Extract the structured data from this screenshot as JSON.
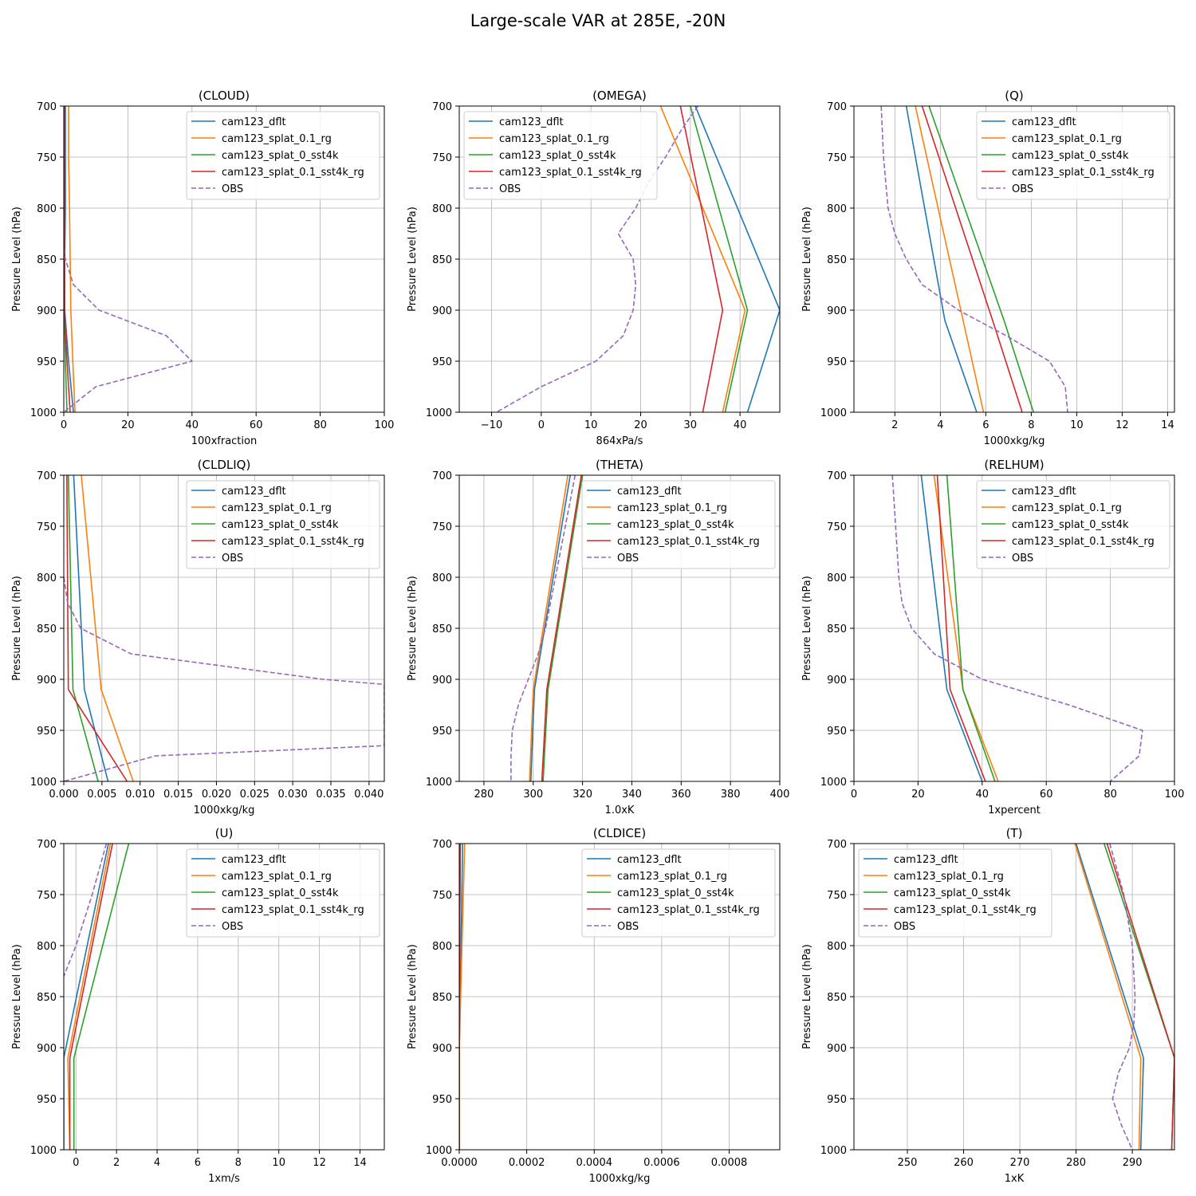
{
  "figure_title": "Large-scale VAR at 285E, -20N",
  "series_colors": {
    "cam123_dflt": "#1f77b4",
    "cam123_splat_0.1_rg": "#ff7f0e",
    "cam123_splat_0_sst4k": "#2ca02c",
    "cam123_splat_0.1_sst4k_rg": "#d62728",
    "OBS": "#9467bd"
  },
  "chart_data": [
    {
      "type": "line",
      "title": "(CLOUD)",
      "xlabel": "100xfraction",
      "ylabel": "Pressure Level (hPa)",
      "xlim": [
        0,
        100
      ],
      "ylim": [
        1000,
        700
      ],
      "xticks": [
        0,
        20,
        40,
        60,
        80,
        100
      ],
      "xtick_labels": [
        "0",
        "20",
        "40",
        "60",
        "80",
        "100"
      ],
      "yticks": [
        700,
        750,
        800,
        850,
        900,
        950,
        1000
      ],
      "grid": true,
      "legend": "upper-right",
      "series": [
        {
          "name": "cam123_dflt",
          "pressure": [
            700,
            750,
            800,
            850,
            900,
            950,
            1000
          ],
          "values": [
            0.5,
            0.5,
            0.5,
            0.3,
            0.3,
            1.5,
            3.0
          ]
        },
        {
          "name": "cam123_splat_0.1_rg",
          "pressure": [
            700,
            750,
            800,
            850,
            900,
            950,
            1000
          ],
          "values": [
            1.5,
            1.5,
            1.8,
            2.0,
            2.2,
            2.8,
            3.5
          ]
        },
        {
          "name": "cam123_splat_0_sst4k",
          "pressure": [
            700,
            750,
            800,
            850,
            900,
            950,
            1000
          ],
          "values": [
            0.3,
            0.3,
            0.3,
            0.2,
            0.2,
            0.5,
            1.0
          ]
        },
        {
          "name": "cam123_splat_0.1_sst4k_rg",
          "pressure": [
            700,
            750,
            800,
            850,
            900,
            950,
            1000
          ],
          "values": [
            0.3,
            0.3,
            0.3,
            0.2,
            0.2,
            1.0,
            2.0
          ]
        },
        {
          "name": "OBS",
          "dashed": true,
          "pressure": [
            840,
            850,
            875,
            900,
            925,
            950,
            975,
            1000
          ],
          "values": [
            0,
            0.5,
            3,
            11,
            32,
            40,
            10,
            0
          ]
        }
      ]
    },
    {
      "type": "line",
      "title": "(OMEGA)",
      "xlabel": "864xPa/s",
      "ylabel": "Pressure Level (hPa)",
      "xlim": [
        -16.5,
        48
      ],
      "ylim": [
        1000,
        700
      ],
      "xticks": [
        -10,
        0,
        10,
        20,
        30,
        40
      ],
      "xtick_labels": [
        "−10",
        "0",
        "10",
        "20",
        "30",
        "40"
      ],
      "yticks": [
        700,
        750,
        800,
        850,
        900,
        950,
        1000
      ],
      "grid": true,
      "legend": "upper-left",
      "series": [
        {
          "name": "cam123_dflt",
          "pressure": [
            700,
            900,
            1000
          ],
          "values": [
            31,
            48,
            41.5
          ]
        },
        {
          "name": "cam123_splat_0.1_rg",
          "pressure": [
            700,
            900,
            1000
          ],
          "values": [
            24,
            41,
            36.5
          ]
        },
        {
          "name": "cam123_splat_0_sst4k",
          "pressure": [
            700,
            900,
            1000
          ],
          "values": [
            30,
            41.5,
            37
          ]
        },
        {
          "name": "cam123_splat_0.1_sst4k_rg",
          "pressure": [
            700,
            900,
            1000
          ],
          "values": [
            28,
            36.5,
            32.5
          ]
        },
        {
          "name": "OBS",
          "dashed": true,
          "pressure": [
            700,
            725,
            750,
            775,
            800,
            825,
            850,
            875,
            900,
            925,
            950,
            975,
            1000
          ],
          "values": [
            31.5,
            28,
            25,
            21.5,
            19,
            15.5,
            18.5,
            19,
            18.5,
            16.5,
            11,
            0,
            -9
          ]
        }
      ]
    },
    {
      "type": "line",
      "title": "(Q)",
      "xlabel": "1000xkg/kg",
      "ylabel": "Pressure Level (hPa)",
      "xlim": [
        0.2,
        14.3
      ],
      "ylim": [
        1000,
        700
      ],
      "xticks": [
        2,
        4,
        6,
        8,
        10,
        12,
        14
      ],
      "xtick_labels": [
        "2",
        "4",
        "6",
        "8",
        "10",
        "12",
        "14"
      ],
      "yticks": [
        700,
        750,
        800,
        850,
        900,
        950,
        1000
      ],
      "grid": true,
      "legend": "upper-right",
      "series": [
        {
          "name": "cam123_dflt",
          "pressure": [
            700,
            910,
            1000
          ],
          "values": [
            2.5,
            4.2,
            5.6
          ]
        },
        {
          "name": "cam123_splat_0.1_rg",
          "pressure": [
            700,
            910,
            1000
          ],
          "values": [
            2.9,
            5.0,
            5.9
          ]
        },
        {
          "name": "cam123_splat_0_sst4k",
          "pressure": [
            700,
            910,
            1000
          ],
          "values": [
            3.5,
            6.8,
            8.1
          ]
        },
        {
          "name": "cam123_splat_0.1_sst4k_rg",
          "pressure": [
            700,
            910,
            1000
          ],
          "values": [
            3.2,
            6.3,
            7.6
          ]
        },
        {
          "name": "OBS",
          "dashed": true,
          "pressure": [
            700,
            750,
            800,
            825,
            850,
            875,
            900,
            925,
            950,
            975,
            1000
          ],
          "values": [
            1.4,
            1.5,
            1.7,
            2.0,
            2.5,
            3.2,
            4.8,
            6.9,
            8.8,
            9.5,
            9.6
          ]
        }
      ]
    },
    {
      "type": "line",
      "title": "(CLDLIQ)",
      "xlabel": "1000xkg/kg",
      "ylabel": "Pressure Level (hPa)",
      "xlim": [
        0,
        0.042
      ],
      "ylim": [
        1000,
        700
      ],
      "xticks": [
        0,
        0.005,
        0.01,
        0.015,
        0.02,
        0.025,
        0.03,
        0.035,
        0.04
      ],
      "xtick_labels": [
        "0.000",
        "0.005",
        "0.010",
        "0.015",
        "0.020",
        "0.025",
        "0.030",
        "0.035",
        "0.040"
      ],
      "yticks": [
        700,
        750,
        800,
        850,
        900,
        950,
        1000
      ],
      "grid": true,
      "legend": "upper-right",
      "series": [
        {
          "name": "cam123_dflt",
          "pressure": [
            700,
            910,
            1000
          ],
          "values": [
            0.0013,
            0.0027,
            0.0058
          ]
        },
        {
          "name": "cam123_splat_0.1_rg",
          "pressure": [
            700,
            910,
            1000
          ],
          "values": [
            0.0023,
            0.0049,
            0.0091
          ]
        },
        {
          "name": "cam123_splat_0_sst4k",
          "pressure": [
            700,
            910,
            1000
          ],
          "values": [
            0.0006,
            0.0012,
            0.0045
          ]
        },
        {
          "name": "cam123_splat_0.1_sst4k_rg",
          "pressure": [
            700,
            910,
            1000
          ],
          "values": [
            0.0004,
            0.0006,
            0.0083
          ]
        },
        {
          "name": "OBS",
          "dashed": true,
          "pressure": [
            800,
            825,
            850,
            875,
            900,
            905,
            960,
            965,
            975,
            1000
          ],
          "values": [
            0,
            0.0005,
            0.0022,
            0.0088,
            0.034,
            0.042,
            0.042,
            0.042,
            0.012,
            0
          ]
        }
      ]
    },
    {
      "type": "line",
      "title": "(THETA)",
      "xlabel": "1.0xK",
      "ylabel": "Pressure Level (hPa)",
      "xlim": [
        270,
        400
      ],
      "ylim": [
        1000,
        700
      ],
      "xticks": [
        280,
        300,
        320,
        340,
        360,
        380,
        400
      ],
      "xtick_labels": [
        "280",
        "300",
        "320",
        "340",
        "360",
        "380",
        "400"
      ],
      "yticks": [
        700,
        750,
        800,
        850,
        900,
        950,
        1000
      ],
      "grid": true,
      "legend": "upper-right",
      "series": [
        {
          "name": "cam123_dflt",
          "pressure": [
            700,
            910,
            1000
          ],
          "values": [
            315,
            300.5,
            299
          ]
        },
        {
          "name": "cam123_splat_0.1_rg",
          "pressure": [
            700,
            910,
            1000
          ],
          "values": [
            314,
            300,
            298.5
          ]
        },
        {
          "name": "cam123_splat_0_sst4k",
          "pressure": [
            700,
            910,
            1000
          ],
          "values": [
            320,
            306,
            304
          ]
        },
        {
          "name": "cam123_splat_0.1_sst4k_rg",
          "pressure": [
            700,
            910,
            1000
          ],
          "values": [
            319.5,
            305.5,
            303.5
          ]
        },
        {
          "name": "OBS",
          "dashed": true,
          "pressure": [
            700,
            750,
            800,
            850,
            875,
            900,
            925,
            950,
            975,
            1000
          ],
          "values": [
            317,
            313,
            309,
            305,
            302,
            298,
            294,
            291.5,
            291,
            291
          ]
        }
      ]
    },
    {
      "type": "line",
      "title": "(RELHUM)",
      "xlabel": "1xpercent",
      "ylabel": "Pressure Level (hPa)",
      "xlim": [
        0,
        100
      ],
      "ylim": [
        1000,
        700
      ],
      "xticks": [
        0,
        20,
        40,
        60,
        80,
        100
      ],
      "xtick_labels": [
        "0",
        "20",
        "40",
        "60",
        "80",
        "100"
      ],
      "yticks": [
        700,
        750,
        800,
        850,
        900,
        950,
        1000
      ],
      "grid": true,
      "legend": "upper-right",
      "series": [
        {
          "name": "cam123_dflt",
          "pressure": [
            700,
            910,
            1000
          ],
          "values": [
            21,
            29,
            40
          ]
        },
        {
          "name": "cam123_splat_0.1_rg",
          "pressure": [
            700,
            910,
            1000
          ],
          "values": [
            25,
            34,
            45
          ]
        },
        {
          "name": "cam123_splat_0_sst4k",
          "pressure": [
            700,
            910,
            1000
          ],
          "values": [
            29,
            34,
            44
          ]
        },
        {
          "name": "cam123_splat_0.1_sst4k_rg",
          "pressure": [
            700,
            910,
            1000
          ],
          "values": [
            26,
            30,
            41
          ]
        },
        {
          "name": "OBS",
          "dashed": true,
          "pressure": [
            700,
            750,
            800,
            825,
            850,
            875,
            900,
            925,
            950,
            975,
            1000
          ],
          "values": [
            12,
            13,
            14,
            15,
            18,
            25,
            40,
            67,
            90,
            89,
            80
          ]
        }
      ]
    },
    {
      "type": "line",
      "title": "(U)",
      "xlabel": "1xm/s",
      "ylabel": "Pressure Level (hPa)",
      "xlim": [
        -0.6,
        15.2
      ],
      "ylim": [
        1000,
        700
      ],
      "xticks": [
        0,
        2,
        4,
        6,
        8,
        10,
        12,
        14
      ],
      "xtick_labels": [
        "0",
        "2",
        "4",
        "6",
        "8",
        "10",
        "12",
        "14"
      ],
      "yticks": [
        700,
        750,
        800,
        850,
        900,
        950,
        1000
      ],
      "grid": true,
      "legend": "upper-right",
      "series": [
        {
          "name": "cam123_dflt",
          "pressure": [
            700,
            910,
            1000
          ],
          "values": [
            1.6,
            -0.6,
            -0.6
          ]
        },
        {
          "name": "cam123_splat_0.1_rg",
          "pressure": [
            700,
            910,
            1000
          ],
          "values": [
            1.7,
            -0.4,
            -0.3
          ]
        },
        {
          "name": "cam123_splat_0_sst4k",
          "pressure": [
            700,
            910,
            1000
          ],
          "values": [
            2.6,
            -0.1,
            -0.1
          ]
        },
        {
          "name": "cam123_splat_0.1_sst4k_rg",
          "pressure": [
            700,
            910,
            1000
          ],
          "values": [
            1.8,
            -0.3,
            -0.3
          ]
        },
        {
          "name": "OBS",
          "dashed": true,
          "pressure": [
            700,
            750,
            800,
            830
          ],
          "values": [
            1.5,
            0.8,
            0.0,
            -0.6
          ]
        }
      ]
    },
    {
      "type": "line",
      "title": "(CLDICE)",
      "xlabel": "1000xkg/kg",
      "ylabel": "Pressure Level (hPa)",
      "xlim": [
        0,
        0.00095
      ],
      "ylim": [
        1000,
        700
      ],
      "xticks": [
        0,
        0.0002,
        0.0004,
        0.0006,
        0.0008
      ],
      "xtick_labels": [
        "0.0000",
        "0.0002",
        "0.0004",
        "0.0006",
        "0.0008"
      ],
      "yticks": [
        700,
        750,
        800,
        850,
        900,
        950,
        1000
      ],
      "grid": true,
      "legend": "upper-right",
      "series": [
        {
          "name": "cam123_dflt",
          "pressure": [
            700,
            850,
            900,
            1000
          ],
          "values": [
            1e-05,
            3e-06,
            0,
            0
          ]
        },
        {
          "name": "cam123_splat_0.1_rg",
          "pressure": [
            700,
            800,
            880,
            900,
            1000
          ],
          "values": [
            1.6e-05,
            8e-06,
            2e-06,
            0,
            0
          ]
        },
        {
          "name": "cam123_splat_0_sst4k",
          "pressure": [
            700,
            850,
            1000
          ],
          "values": [
            3e-06,
            0,
            0
          ]
        },
        {
          "name": "cam123_splat_0.1_sst4k_rg",
          "pressure": [
            700,
            850,
            1000
          ],
          "values": [
            3e-06,
            0,
            0
          ]
        },
        {
          "name": "OBS",
          "dashed": true,
          "pressure": [],
          "values": []
        }
      ]
    },
    {
      "type": "line",
      "title": "(T)",
      "xlabel": "1xK",
      "ylabel": "Pressure Level (hPa)",
      "xlim": [
        240.5,
        297.5
      ],
      "ylim": [
        1000,
        700
      ],
      "xticks": [
        250,
        260,
        270,
        280,
        290
      ],
      "xtick_labels": [
        "250",
        "260",
        "270",
        "280",
        "290"
      ],
      "yticks": [
        700,
        750,
        800,
        850,
        900,
        950,
        1000
      ],
      "grid": true,
      "legend": "upper-left",
      "series": [
        {
          "name": "cam123_dflt",
          "pressure": [
            700,
            910,
            1000
          ],
          "values": [
            280,
            292,
            291.5
          ]
        },
        {
          "name": "cam123_splat_0.1_rg",
          "pressure": [
            700,
            910,
            1000
          ],
          "values": [
            279.8,
            291.5,
            291.2
          ]
        },
        {
          "name": "cam123_splat_0_sst4k",
          "pressure": [
            700,
            910,
            1000
          ],
          "values": [
            285,
            297.5,
            297
          ]
        },
        {
          "name": "cam123_splat_0.1_sst4k_rg",
          "pressure": [
            700,
            910,
            1000
          ],
          "values": [
            285.5,
            297.5,
            297
          ]
        },
        {
          "name": "OBS",
          "dashed": true,
          "pressure": [
            700,
            750,
            800,
            850,
            875,
            900,
            925,
            950,
            975,
            1000
          ],
          "values": [
            286,
            288.5,
            290,
            290.5,
            290.3,
            289.5,
            287.5,
            286.5,
            288,
            290
          ]
        }
      ]
    }
  ]
}
